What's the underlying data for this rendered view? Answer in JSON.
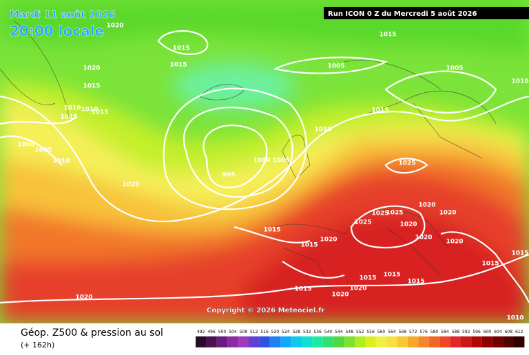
{
  "header": {
    "date": "Mardi 11 août 2026",
    "time": "20:00 locale",
    "run": "Run ICON 0 Z du Mercredi 5 août 2026"
  },
  "copyright": "Copyright © 2026 Meteociel.fr",
  "footer": {
    "title": "Géop. Z500 & pression au sol",
    "subtitle": "(+ 162h)"
  },
  "legend": [
    492,
    496,
    500,
    504,
    508,
    512,
    516,
    520,
    524,
    528,
    532,
    536,
    540,
    544,
    548,
    552,
    556,
    560,
    564,
    568,
    572,
    576,
    580,
    584,
    588,
    592,
    596,
    600,
    604,
    608,
    612
  ],
  "isobar_labels": [
    1020,
    1015,
    1015,
    1020,
    1015,
    1010,
    1010,
    1015,
    1015,
    1000,
    1005,
    1010,
    1020,
    995,
    1000,
    1005,
    1010,
    1015,
    1005,
    1005,
    1015,
    1025,
    1015,
    1020,
    1025,
    1025,
    1025,
    1020,
    1020,
    1020,
    1020,
    1020,
    1015,
    1015,
    1015,
    1015,
    1015,
    1015,
    1020,
    1020,
    1020,
    1015,
    1010,
    1010
  ]
}
